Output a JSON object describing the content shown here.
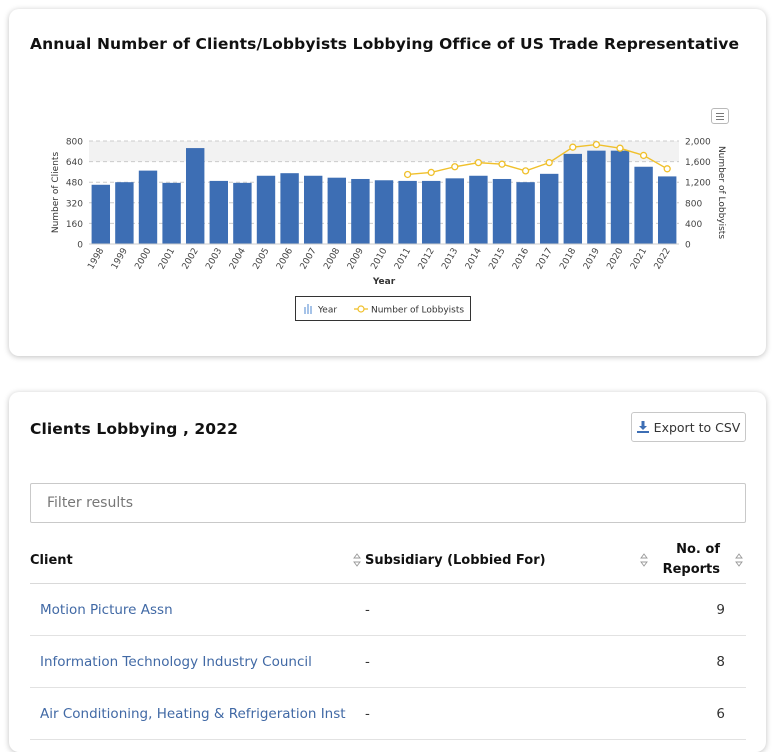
{
  "chart_card": {
    "title": "Annual Number of Clients/Lobbyists Lobbying Office of US Trade Representative"
  },
  "chart_data": {
    "type": "bar",
    "title": "Annual Number of Clients/Lobbyists Lobbying Office of US Trade Representative",
    "xlabel": "Year",
    "ylabel": "Number of Clients",
    "y2label": "Number of Lobbyists",
    "categories": [
      "1998",
      "1999",
      "2000",
      "2001",
      "2002",
      "2003",
      "2004",
      "2005",
      "2006",
      "2007",
      "2008",
      "2009",
      "2010",
      "2011",
      "2012",
      "2013",
      "2014",
      "2015",
      "2016",
      "2017",
      "2018",
      "2019",
      "2020",
      "2021",
      "2022"
    ],
    "series": [
      {
        "name": "Year",
        "type": "bar",
        "axis": "left",
        "values": [
          460,
          480,
          570,
          475,
          745,
          490,
          475,
          530,
          550,
          530,
          515,
          505,
          495,
          490,
          490,
          510,
          530,
          505,
          480,
          545,
          700,
          725,
          725,
          600,
          525
        ]
      },
      {
        "name": "Number of Lobbyists",
        "type": "line",
        "axis": "right",
        "values": [
          null,
          null,
          null,
          null,
          null,
          null,
          null,
          null,
          null,
          null,
          null,
          null,
          null,
          1350,
          1390,
          1500,
          1580,
          1550,
          1420,
          1580,
          1880,
          1930,
          1860,
          1720,
          1460
        ]
      }
    ],
    "ylim": [
      0,
      800
    ],
    "yticks": [
      "0",
      "160",
      "320",
      "480",
      "640",
      "800"
    ],
    "y2lim": [
      0,
      2000
    ],
    "y2ticks": [
      "0",
      "400",
      "800",
      "1,200",
      "1,600",
      "2,000"
    ],
    "legend": {
      "position": "bottom-center",
      "items": [
        "Year",
        "Number of Lobbyists"
      ]
    },
    "colors": {
      "bar": "#3d6eb4",
      "line": "#f0c02c",
      "plot_band": "#f2f2f2",
      "grid": "#cccccc"
    }
  },
  "table_card": {
    "title": "Clients Lobbying , 2022",
    "export_label": "Export to CSV",
    "filter_placeholder": "Filter results",
    "columns": {
      "client": "Client",
      "subsidiary": "Subsidiary (Lobbied For)",
      "reports_line1": "No. of",
      "reports_line2": "Reports"
    },
    "rows": [
      {
        "client": "Motion Picture Assn",
        "subsidiary": "-",
        "reports": "9"
      },
      {
        "client": "Information Technology Industry Council",
        "subsidiary": "-",
        "reports": "8"
      },
      {
        "client": "Air Conditioning, Heating & Refrigeration Inst",
        "subsidiary": "-",
        "reports": "6"
      }
    ],
    "link_color": "#4169a5"
  }
}
